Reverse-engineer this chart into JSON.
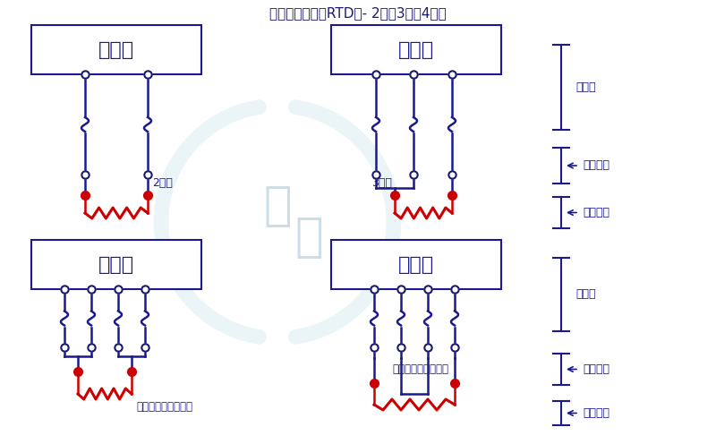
{
  "title": "热电阻传感器（RTD）- 2线、3线、4线制",
  "title_color": "#1a1a6e",
  "bg_color": "#ffffff",
  "box_color": "#1a1a8e",
  "wire_color": "#1a1a8e",
  "red_color": "#cc0000",
  "legend_color": "#1a1a8e",
  "label_2wire": "2线制",
  "label_3wire": "3线制",
  "label_4wire_comp": "四线制有配对端子线",
  "label_4wire_nocomp": "四线制没有补偿回路",
  "label_copper": "铜导线",
  "label_inner": "内部导线",
  "label_resistor": "电阻元件",
  "box_label": "变送器",
  "watermark_color": "#ddeef5",
  "watermark_arc_color": "#c8e0ea"
}
